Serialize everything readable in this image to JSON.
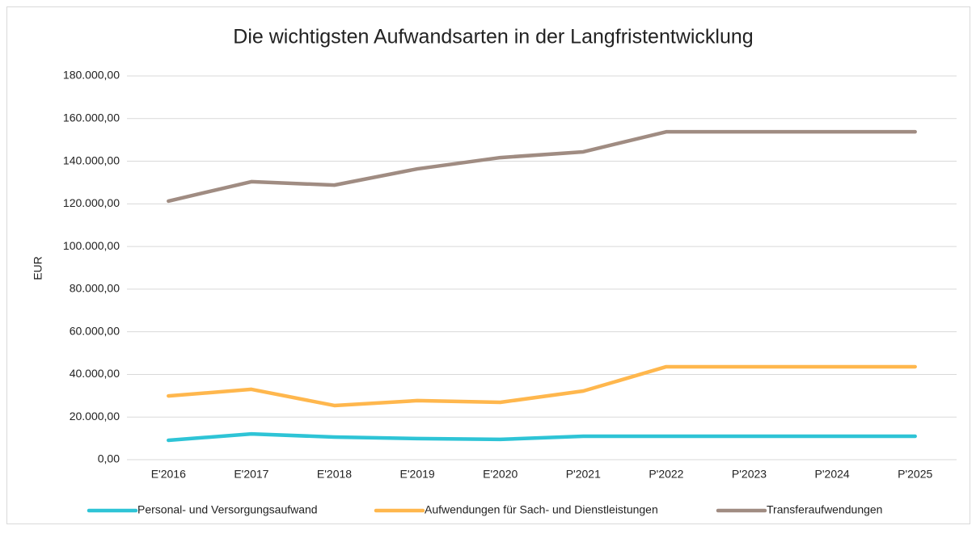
{
  "chart_data": {
    "type": "line",
    "title": "Die wichtigsten Aufwandsarten in der Langfristentwicklung",
    "y_label": "EUR",
    "categories": [
      "E'2016",
      "E'2017",
      "E'2018",
      "E'2019",
      "E'2020",
      "P'2021",
      "P'2022",
      "P'2023",
      "P'2024",
      "P'2025"
    ],
    "series": [
      {
        "name": "Personal- und Versorgungsaufwand",
        "color": "#2ec4d6",
        "values": [
          9100,
          12100,
          10600,
          9900,
          9500,
          11000,
          11000,
          11000,
          11000,
          11000
        ]
      },
      {
        "name": "Aufwendungen für Sach- und Dienstleistungen",
        "color": "#ffb74d",
        "values": [
          29900,
          33000,
          25400,
          27700,
          26900,
          32200,
          43600,
          43600,
          43600,
          43600
        ]
      },
      {
        "name": "Transferaufwendungen",
        "color": "#a08c82",
        "values": [
          121300,
          130400,
          128800,
          136400,
          141700,
          144400,
          153800,
          153800,
          153800,
          153800
        ]
      }
    ],
    "ylim": [
      0,
      180000
    ],
    "yticks": [
      {
        "value": 0,
        "label": "0,00"
      },
      {
        "value": 20000,
        "label": "20.000,00"
      },
      {
        "value": 40000,
        "label": "40.000,00"
      },
      {
        "value": 60000,
        "label": "60.000,00"
      },
      {
        "value": 80000,
        "label": "80.000,00"
      },
      {
        "value": 100000,
        "label": "100.000,00"
      },
      {
        "value": 120000,
        "label": "120.000,00"
      },
      {
        "value": 140000,
        "label": "140.000,00"
      },
      {
        "value": 160000,
        "label": "160.000,00"
      },
      {
        "value": 180000,
        "label": "180.000,00"
      }
    ],
    "grid": true,
    "legend": "bottom"
  }
}
